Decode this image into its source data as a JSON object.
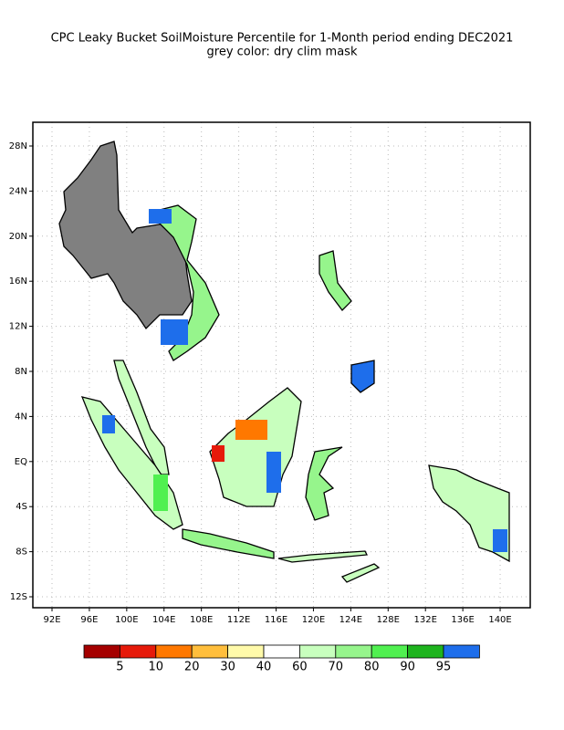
{
  "title": [
    "CPC Leaky Bucket SoilMoisture Percentile for 1-Month period ending  DEC2021",
    "grey color: dry clim mask"
  ],
  "lat_ticks": [
    "28N",
    "24N",
    "20N",
    "16N",
    "12N",
    "8N",
    "4N",
    "EQ",
    "4S",
    "8S",
    "12S"
  ],
  "lon_ticks": [
    "92E",
    "96E",
    "100E",
    "104E",
    "108E",
    "112E",
    "116E",
    "120E",
    "124E",
    "128E",
    "132E",
    "136E",
    "140E"
  ],
  "colorbar": {
    "colors": [
      "#a50000",
      "#e61a0a",
      "#ff7800",
      "#ffbe3c",
      "#fffaaa",
      "#ffffff",
      "#c8ffbe",
      "#96f58c",
      "#50f050",
      "#1eb41e",
      "#1e6eeb"
    ],
    "labels": [
      "5",
      "10",
      "20",
      "30",
      "40",
      "60",
      "70",
      "80",
      "90",
      "95"
    ]
  }
}
